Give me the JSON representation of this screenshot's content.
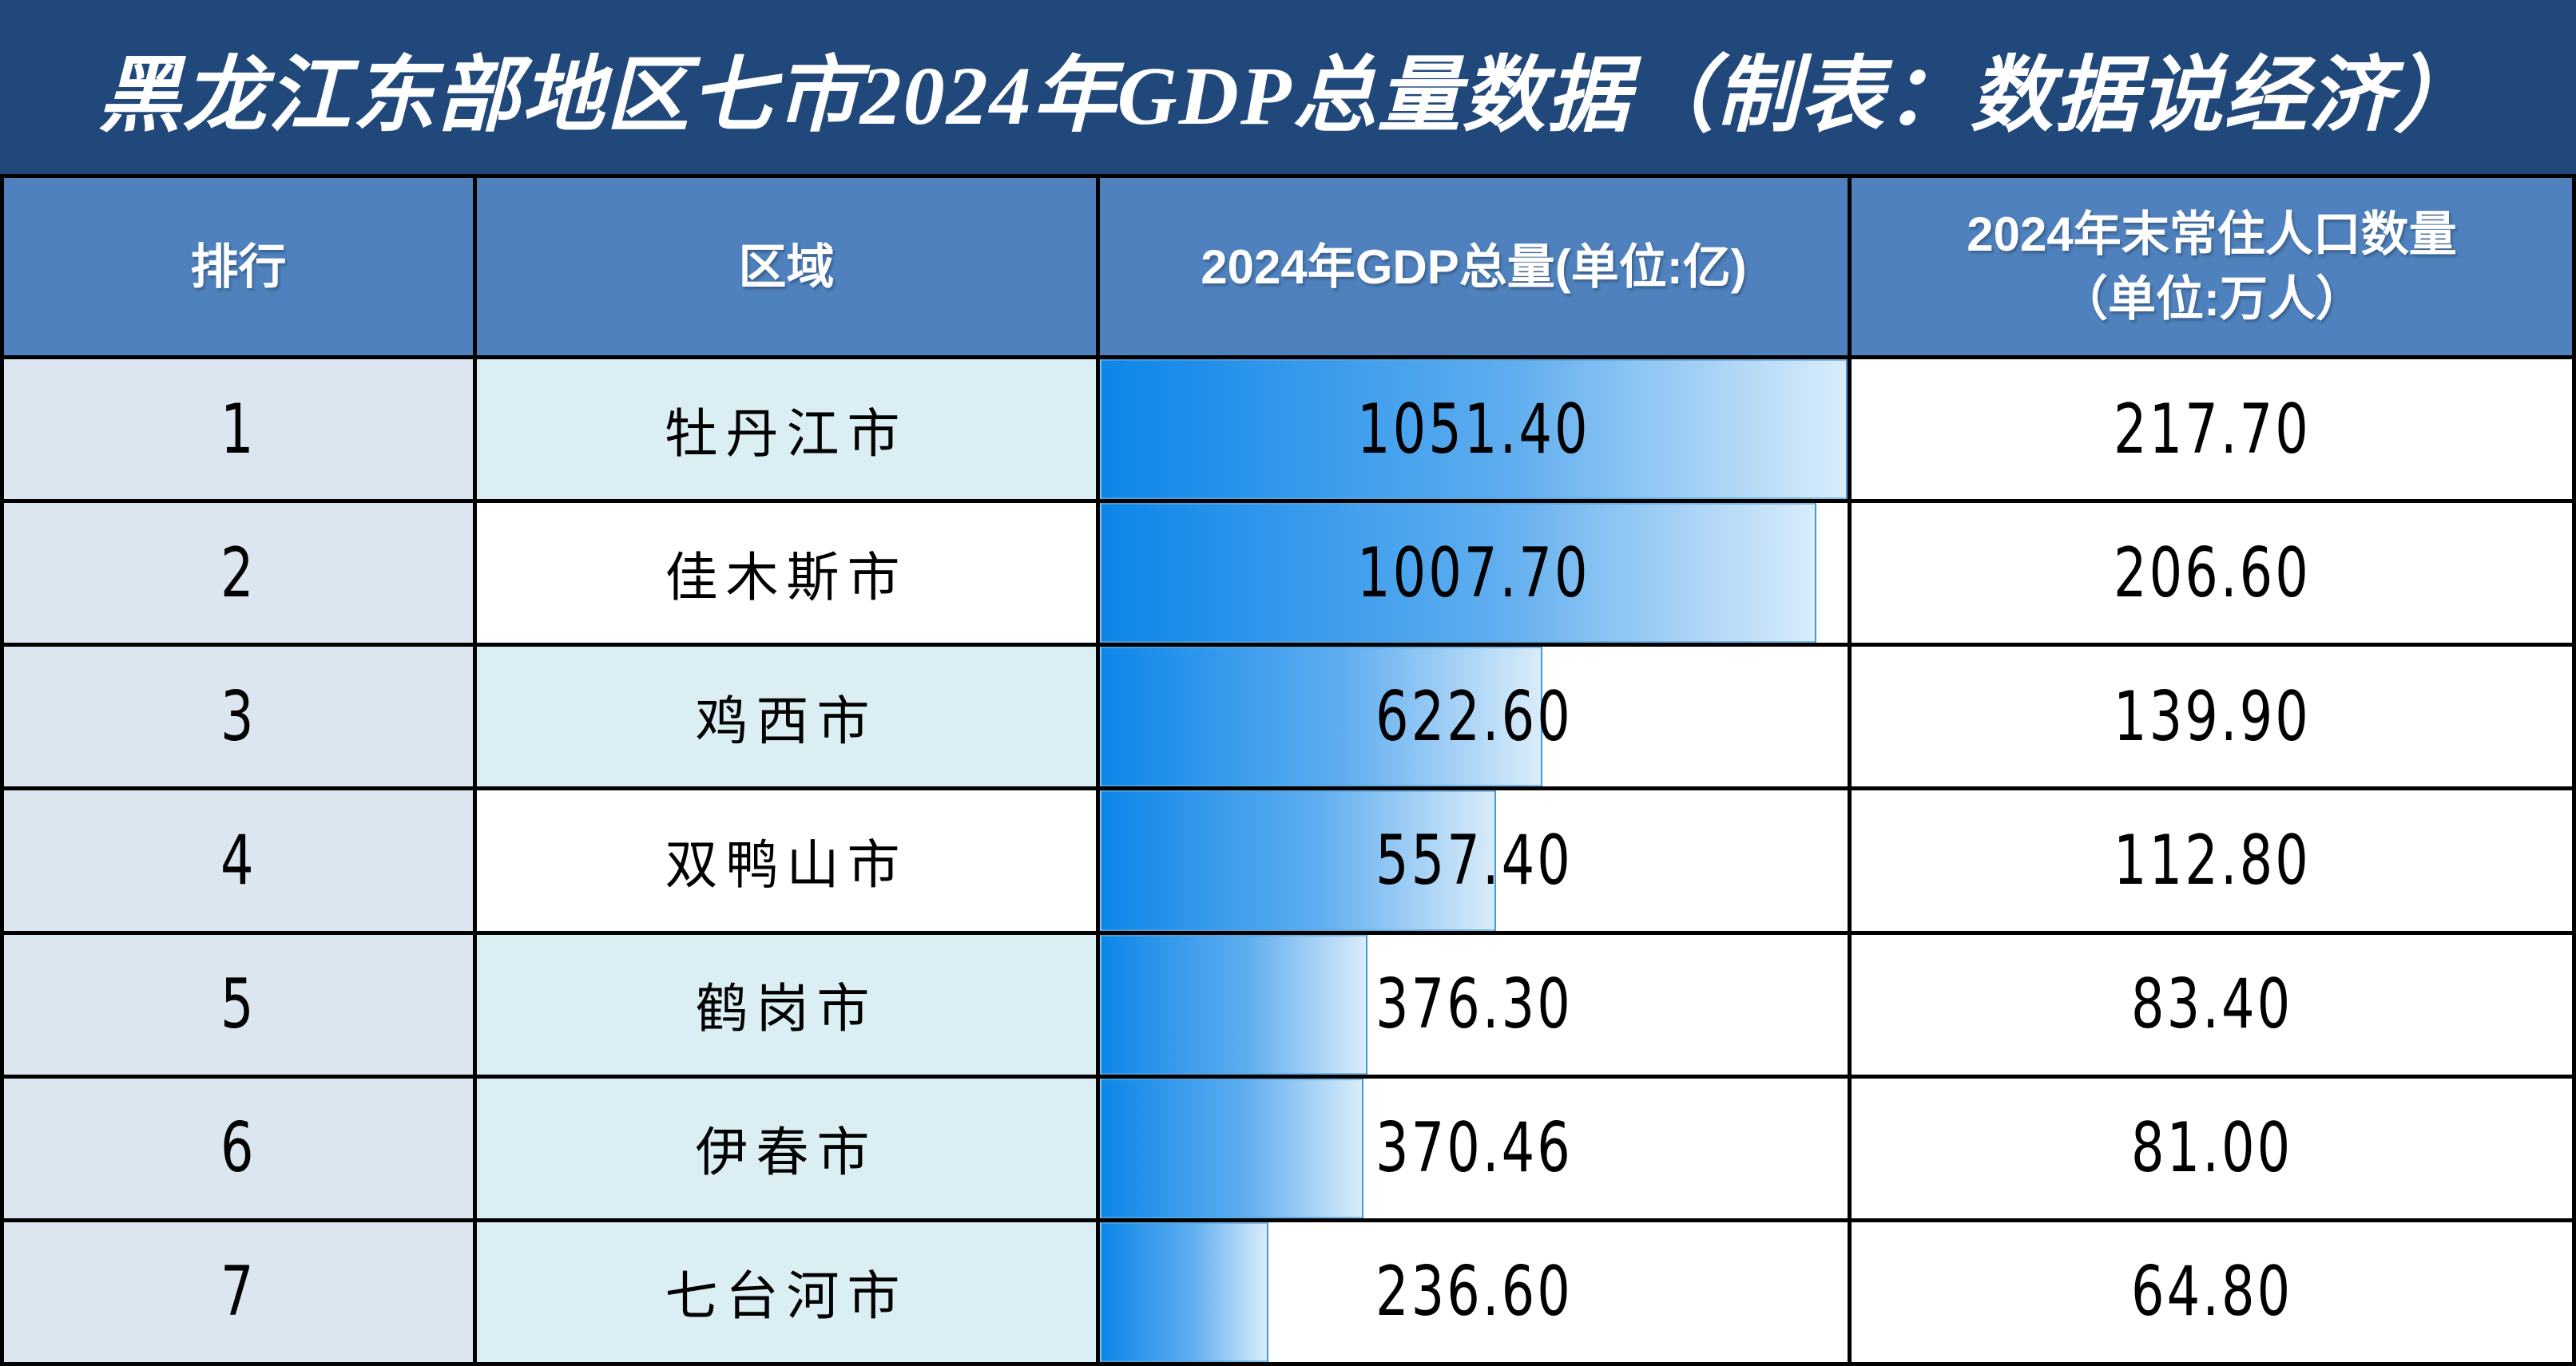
{
  "title": "黑龙江东部地区七市2024年GDP总量数据（制表：数据说经济）",
  "header": {
    "rank": "排行",
    "region": "区域",
    "gdp": "2024年GDP总量(单位:亿)",
    "population": "2024年末常住人口数量\n（单位:万人）"
  },
  "chart_data": {
    "type": "table",
    "title": "黑龙江东部地区七市2024年GDP总量数据（制表：数据说经济）",
    "columns": [
      "排行",
      "区域",
      "2024年GDP总量(单位:亿)",
      "2024年末常住人口数量（单位:万人）"
    ],
    "gdp_bar_max": 1051.4,
    "rows": [
      {
        "rank": "1",
        "region": "牡丹江市",
        "gdp": "1051.40",
        "pop": "217.70",
        "region_shaded": true
      },
      {
        "rank": "2",
        "region": "佳木斯市",
        "gdp": "1007.70",
        "pop": "206.60",
        "region_shaded": false
      },
      {
        "rank": "3",
        "region": "鸡西市",
        "gdp": "622.60",
        "pop": "139.90",
        "region_shaded": true
      },
      {
        "rank": "4",
        "region": "双鸭山市",
        "gdp": "557.40",
        "pop": "112.80",
        "region_shaded": false
      },
      {
        "rank": "5",
        "region": "鹤岗市",
        "gdp": "376.30",
        "pop": "83.40",
        "region_shaded": true
      },
      {
        "rank": "6",
        "region": "伊春市",
        "gdp": "370.46",
        "pop": "81.00",
        "region_shaded": true
      },
      {
        "rank": "7",
        "region": "七台河市",
        "gdp": "236.60",
        "pop": "64.80",
        "region_shaded": true
      }
    ],
    "colors": {
      "title_bg": "#20487A",
      "header_bg": "#4E81BD",
      "rank_cell_bg": "#DCE6F1",
      "region_shaded_bg": "#DAEEF3",
      "bar_gradient_start": "#0D86E9",
      "bar_gradient_end": "#D9ECFA",
      "grid_line": "#000000",
      "header_text": "#FFFFFF",
      "body_text": "#000000"
    },
    "layout": {
      "legend": "none",
      "grid": "black cell borders",
      "bar_direction": "left-to-right"
    }
  }
}
